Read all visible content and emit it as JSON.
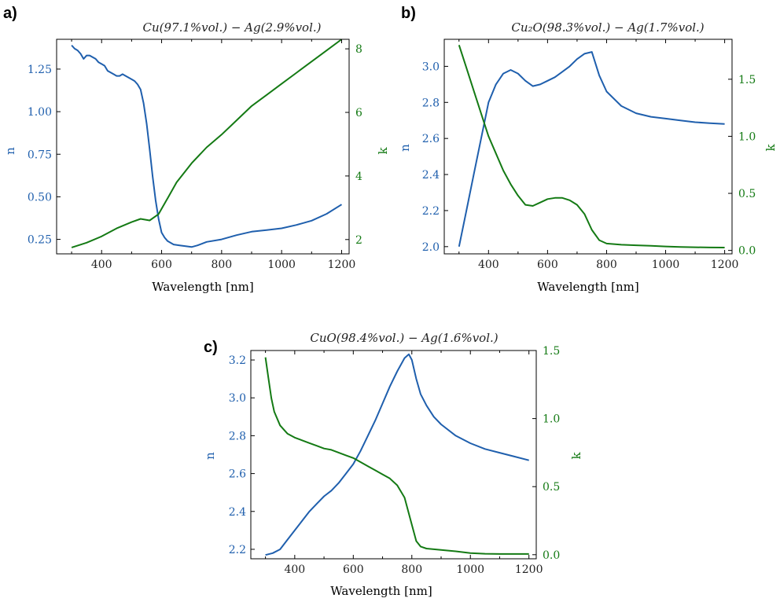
{
  "colors": {
    "n": "#1f5fad",
    "k": "#147a14",
    "axes": "#000000"
  },
  "chart_data": [
    {
      "panel": "a)",
      "type": "line",
      "title": "Cu(97.1%vol.) − Ag(2.9%vol.)",
      "xlabel": "Wavelength [nm]",
      "ylabel_left": "n",
      "ylabel_right": "k",
      "xlim": [
        250,
        1225
      ],
      "ylim_left": [
        0.165,
        1.425
      ],
      "ylim_right": [
        1.55,
        8.3
      ],
      "xticks": [
        "400",
        "600",
        "800",
        "1000",
        "1200"
      ],
      "yticks_left": [
        "0.25",
        "0.50",
        "0.75",
        "1.00",
        "1.25"
      ],
      "yticks_right": [
        "2",
        "4",
        "6",
        "8"
      ],
      "series": [
        {
          "name": "n",
          "axis": "left",
          "x": [
            300,
            310,
            320,
            330,
            340,
            350,
            360,
            370,
            380,
            390,
            400,
            410,
            420,
            430,
            440,
            450,
            460,
            470,
            480,
            490,
            500,
            510,
            520,
            530,
            540,
            550,
            560,
            570,
            580,
            590,
            600,
            610,
            620,
            640,
            660,
            680,
            700,
            720,
            750,
            800,
            850,
            900,
            950,
            1000,
            1050,
            1100,
            1150,
            1200
          ],
          "y": [
            1.39,
            1.37,
            1.36,
            1.34,
            1.31,
            1.33,
            1.33,
            1.32,
            1.31,
            1.29,
            1.28,
            1.27,
            1.24,
            1.23,
            1.22,
            1.21,
            1.21,
            1.22,
            1.21,
            1.2,
            1.19,
            1.18,
            1.16,
            1.13,
            1.05,
            0.93,
            0.78,
            0.62,
            0.48,
            0.37,
            0.29,
            0.26,
            0.24,
            0.22,
            0.215,
            0.21,
            0.205,
            0.215,
            0.235,
            0.25,
            0.275,
            0.295,
            0.305,
            0.315,
            0.335,
            0.36,
            0.4,
            0.455
          ]
        },
        {
          "name": "k",
          "axis": "right",
          "x": [
            300,
            350,
            400,
            450,
            500,
            530,
            560,
            590,
            620,
            650,
            700,
            750,
            800,
            850,
            900,
            950,
            1000,
            1050,
            1100,
            1150,
            1200
          ],
          "y": [
            1.75,
            1.9,
            2.1,
            2.35,
            2.55,
            2.65,
            2.6,
            2.8,
            3.3,
            3.8,
            4.4,
            4.9,
            5.3,
            5.75,
            6.2,
            6.55,
            6.9,
            7.25,
            7.6,
            7.95,
            8.3
          ]
        }
      ]
    },
    {
      "panel": "b)",
      "type": "line",
      "title": "Cu₂O(98.3%vol.) − Ag(1.7%vol.)",
      "xlabel": "Wavelength [nm]",
      "ylabel_left": "n",
      "ylabel_right": "k",
      "xlim": [
        250,
        1225
      ],
      "ylim_left": [
        1.96,
        3.15
      ],
      "ylim_right": [
        -0.03,
        1.85
      ],
      "xticks": [
        "400",
        "600",
        "800",
        "1000",
        "1200"
      ],
      "yticks_left": [
        "2.0",
        "2.2",
        "2.4",
        "2.6",
        "2.8",
        "3.0"
      ],
      "yticks_right": [
        "0.0",
        "0.5",
        "1.0",
        "1.5"
      ],
      "series": [
        {
          "name": "n",
          "axis": "left",
          "x": [
            300,
            325,
            350,
            375,
            400,
            425,
            450,
            475,
            500,
            525,
            550,
            575,
            600,
            625,
            650,
            675,
            700,
            725,
            750,
            775,
            800,
            850,
            900,
            950,
            1000,
            1050,
            1100,
            1150,
            1200
          ],
          "y": [
            2.0,
            2.2,
            2.4,
            2.6,
            2.8,
            2.9,
            2.96,
            2.98,
            2.96,
            2.92,
            2.89,
            2.9,
            2.92,
            2.94,
            2.97,
            3.0,
            3.04,
            3.07,
            3.08,
            2.95,
            2.86,
            2.78,
            2.74,
            2.72,
            2.71,
            2.7,
            2.69,
            2.685,
            2.68
          ]
        },
        {
          "name": "k",
          "axis": "right",
          "x": [
            300,
            325,
            350,
            375,
            400,
            425,
            450,
            475,
            500,
            525,
            550,
            575,
            600,
            625,
            650,
            675,
            700,
            725,
            750,
            775,
            800,
            850,
            900,
            950,
            1000,
            1050,
            1100,
            1150,
            1200
          ],
          "y": [
            1.8,
            1.6,
            1.4,
            1.2,
            1.0,
            0.85,
            0.7,
            0.58,
            0.48,
            0.4,
            0.39,
            0.42,
            0.45,
            0.46,
            0.46,
            0.44,
            0.4,
            0.32,
            0.18,
            0.09,
            0.06,
            0.05,
            0.045,
            0.04,
            0.035,
            0.03,
            0.028,
            0.026,
            0.025
          ]
        }
      ]
    },
    {
      "panel": "c)",
      "type": "line",
      "title": "CuO(98.4%vol.) − Ag(1.6%vol.)",
      "xlabel": "Wavelength [nm]",
      "ylabel_left": "n",
      "ylabel_right": "k",
      "xlim": [
        250,
        1225
      ],
      "ylim_left": [
        2.15,
        3.25
      ],
      "ylim_right": [
        -0.03,
        1.5
      ],
      "xticks": [
        "400",
        "600",
        "800",
        "1000",
        "1200"
      ],
      "yticks_left": [
        "2.2",
        "2.4",
        "2.6",
        "2.8",
        "3.0",
        "3.2"
      ],
      "yticks_right": [
        "0.0",
        "0.5",
        "1.0",
        "1.5"
      ],
      "series": [
        {
          "name": "n",
          "axis": "left",
          "x": [
            300,
            325,
            350,
            375,
            400,
            425,
            450,
            475,
            500,
            525,
            550,
            575,
            600,
            625,
            650,
            675,
            700,
            725,
            750,
            775,
            790,
            800,
            815,
            830,
            850,
            875,
            900,
            950,
            1000,
            1050,
            1100,
            1150,
            1200
          ],
          "y": [
            2.17,
            2.18,
            2.2,
            2.25,
            2.3,
            2.35,
            2.4,
            2.44,
            2.48,
            2.51,
            2.55,
            2.6,
            2.65,
            2.72,
            2.8,
            2.88,
            2.97,
            3.06,
            3.14,
            3.21,
            3.23,
            3.2,
            3.1,
            3.02,
            2.96,
            2.9,
            2.86,
            2.8,
            2.76,
            2.73,
            2.71,
            2.69,
            2.67
          ]
        },
        {
          "name": "k",
          "axis": "right",
          "x": [
            300,
            310,
            320,
            330,
            350,
            375,
            400,
            425,
            450,
            475,
            500,
            525,
            550,
            575,
            600,
            625,
            650,
            675,
            700,
            725,
            750,
            775,
            800,
            815,
            830,
            850,
            875,
            900,
            950,
            1000,
            1050,
            1100,
            1150,
            1200
          ],
          "y": [
            1.45,
            1.3,
            1.15,
            1.05,
            0.95,
            0.89,
            0.86,
            0.84,
            0.82,
            0.8,
            0.78,
            0.77,
            0.75,
            0.73,
            0.71,
            0.68,
            0.65,
            0.62,
            0.59,
            0.56,
            0.51,
            0.42,
            0.22,
            0.1,
            0.06,
            0.045,
            0.04,
            0.035,
            0.025,
            0.012,
            0.007,
            0.005,
            0.005,
            0.005
          ]
        }
      ]
    }
  ]
}
